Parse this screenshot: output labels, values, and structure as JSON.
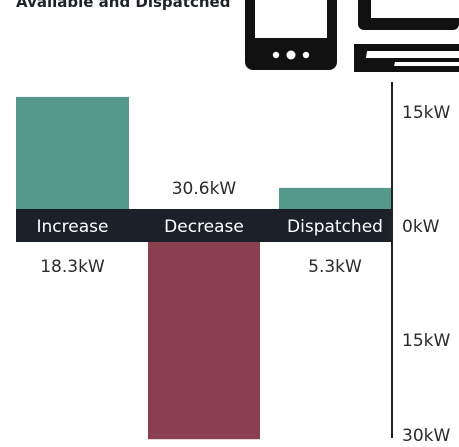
{
  "header": {
    "title": "Available and Dispatched"
  },
  "icons": {
    "phone": "smartphone-icon",
    "laptop": "laptop-icon"
  },
  "colors": {
    "increase": "#55998a",
    "decrease": "#8a4050",
    "band": "#1c2129",
    "band_text": "#ffffff",
    "text": "#2b2b2b",
    "axis": "#222222"
  },
  "chart_data": {
    "type": "bar",
    "unit": "kW",
    "categories": [
      "Increase",
      "Decrease",
      "Dispatched"
    ],
    "series": [
      {
        "values": [
          18.3,
          -30.6,
          5.3
        ],
        "value_labels": [
          "18.3kW",
          "30.6kW",
          "5.3kW"
        ]
      }
    ],
    "ylim": [
      -30,
      20
    ],
    "y_ticks": [
      {
        "value": 15,
        "label": "15kW"
      },
      {
        "value": 0,
        "label": "0kW"
      },
      {
        "value": -15,
        "label": "15kW"
      },
      {
        "value": -30,
        "label": "30kW"
      }
    ],
    "xlabel": "",
    "ylabel": "",
    "grid": false,
    "legend": "none"
  }
}
